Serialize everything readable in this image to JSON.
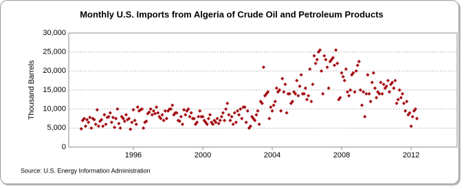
{
  "chart_data": {
    "type": "scatter",
    "title": "Monthly U.S. Imports from Algeria of Crude Oil and Petroleum Products",
    "y_label": "Thousand Barrels",
    "source": "Source: U.S. Energy Information Administration",
    "xlim": [
      1992.28,
      2014.65
    ],
    "xticks": [
      1996,
      2000,
      2004,
      2008,
      2012
    ],
    "ylim": [
      0,
      30000
    ],
    "yticks": [
      {
        "value": 0,
        "label": "0"
      },
      {
        "value": 5000,
        "label": "5,000"
      },
      {
        "value": 10000,
        "label": "10,000"
      },
      {
        "value": 15000,
        "label": "15,000"
      },
      {
        "value": 20000,
        "label": "20,000"
      },
      {
        "value": 25000,
        "label": "25,000"
      },
      {
        "value": 30000,
        "label": "30,000"
      }
    ],
    "grid": true,
    "series": [
      {
        "color": "#a50f15",
        "x": [
          1993,
          1993.083,
          1993.167,
          1993.25,
          1993.333,
          1993.417,
          1993.5,
          1993.583,
          1993.667,
          1993.75,
          1993.833,
          1993.917,
          1994,
          1994.083,
          1994.167,
          1994.25,
          1994.333,
          1994.417,
          1994.5,
          1994.583,
          1994.667,
          1994.75,
          1994.833,
          1994.917,
          1995,
          1995.083,
          1995.167,
          1995.25,
          1995.333,
          1995.417,
          1995.5,
          1995.583,
          1995.667,
          1995.75,
          1995.833,
          1995.917,
          1996,
          1996.083,
          1996.167,
          1996.25,
          1996.333,
          1996.417,
          1996.5,
          1996.583,
          1996.667,
          1996.75,
          1996.833,
          1996.917,
          1997,
          1997.083,
          1997.167,
          1997.25,
          1997.333,
          1997.417,
          1997.5,
          1997.583,
          1997.667,
          1997.75,
          1997.833,
          1997.917,
          1998,
          1998.083,
          1998.167,
          1998.25,
          1998.333,
          1998.417,
          1998.5,
          1998.583,
          1998.667,
          1998.75,
          1998.833,
          1998.917,
          1999,
          1999.083,
          1999.167,
          1999.25,
          1999.333,
          1999.417,
          1999.5,
          1999.583,
          1999.667,
          1999.75,
          1999.833,
          1999.917,
          2000,
          2000.083,
          2000.167,
          2000.25,
          2000.333,
          2000.417,
          2000.5,
          2000.583,
          2000.667,
          2000.75,
          2000.833,
          2000.917,
          2001,
          2001.083,
          2001.167,
          2001.25,
          2001.333,
          2001.417,
          2001.5,
          2001.583,
          2001.667,
          2001.75,
          2001.833,
          2001.917,
          2002,
          2002.083,
          2002.167,
          2002.25,
          2002.333,
          2002.417,
          2002.5,
          2002.583,
          2002.667,
          2002.75,
          2002.833,
          2002.917,
          2003,
          2003.083,
          2003.167,
          2003.25,
          2003.333,
          2003.417,
          2003.5,
          2003.583,
          2003.667,
          2003.75,
          2003.833,
          2003.917,
          2004,
          2004.083,
          2004.167,
          2004.25,
          2004.333,
          2004.417,
          2004.5,
          2004.583,
          2004.667,
          2004.75,
          2004.833,
          2004.917,
          2005,
          2005.083,
          2005.167,
          2005.25,
          2005.333,
          2005.417,
          2005.5,
          2005.583,
          2005.667,
          2005.75,
          2005.833,
          2005.917,
          2006,
          2006.083,
          2006.167,
          2006.25,
          2006.333,
          2006.417,
          2006.5,
          2006.583,
          2006.667,
          2006.75,
          2006.833,
          2006.917,
          2007,
          2007.083,
          2007.167,
          2007.25,
          2007.333,
          2007.417,
          2007.5,
          2007.583,
          2007.667,
          2007.75,
          2007.833,
          2007.917,
          2008,
          2008.083,
          2008.167,
          2008.25,
          2008.333,
          2008.417,
          2008.5,
          2008.583,
          2008.667,
          2008.75,
          2008.833,
          2008.917,
          2009,
          2009.083,
          2009.167,
          2009.25,
          2009.333,
          2009.417,
          2009.5,
          2009.583,
          2009.667,
          2009.75,
          2009.833,
          2009.917,
          2010,
          2010.083,
          2010.167,
          2010.25,
          2010.333,
          2010.417,
          2010.5,
          2010.583,
          2010.667,
          2010.75,
          2010.833,
          2010.917,
          2011,
          2011.083,
          2011.167,
          2011.25,
          2011.333,
          2011.417,
          2011.5,
          2011.583,
          2011.667,
          2011.75,
          2011.833,
          2011.917,
          2012,
          2012.083,
          2012.167,
          2012.25,
          2012.333
        ],
        "values": [
          4800,
          7000,
          7500,
          5500,
          7200,
          6500,
          7800,
          5000,
          7500,
          7200,
          6000,
          9800,
          5500,
          6800,
          7200,
          5500,
          8500,
          6000,
          7800,
          8000,
          9000,
          6500,
          7800,
          5200,
          7500,
          10000,
          6200,
          5000,
          8000,
          7500,
          6800,
          8500,
          7200,
          7500,
          4700,
          6500,
          9800,
          7000,
          6000,
          10500,
          9500,
          9800,
          10000,
          5000,
          6500,
          6800,
          8800,
          9200,
          10000,
          8500,
          9500,
          8800,
          10500,
          9000,
          8000,
          7500,
          8500,
          7000,
          9500,
          7500,
          9500,
          10000,
          10000,
          11000,
          8500,
          9000,
          9000,
          7000,
          6800,
          8000,
          6000,
          9800,
          8500,
          9500,
          10000,
          8000,
          9000,
          7500,
          7500,
          6000,
          6500,
          8000,
          9500,
          8000,
          8000,
          7000,
          6500,
          6000,
          7500,
          8500,
          6500,
          6000,
          7000,
          6500,
          7500,
          6200,
          7000,
          8000,
          9000,
          7000,
          10000,
          11500,
          8500,
          7000,
          8000,
          6000,
          9000,
          6500,
          9500,
          8500,
          10000,
          7500,
          10500,
          10500,
          6500,
          9500,
          5000,
          5500,
          8000,
          7500,
          7000,
          8500,
          9500,
          6000,
          12000,
          11500,
          21000,
          13500,
          14000,
          14500,
          7500,
          10500,
          9500,
          11000,
          12000,
          15500,
          14500,
          15000,
          9500,
          18000,
          14500,
          16500,
          9000,
          14000,
          14000,
          11500,
          12000,
          14500,
          14000,
          17500,
          13500,
          16000,
          19000,
          14000,
          14000,
          15500,
          12500,
          13500,
          20500,
          12000,
          16500,
          24000,
          22000,
          23000,
          25000,
          25500,
          20000,
          14000,
          24000,
          23000,
          21000,
          15500,
          22500,
          23000,
          23500,
          21500,
          25500,
          22000,
          12500,
          13000,
          19500,
          18500,
          17500,
          20500,
          14500,
          13500,
          15000,
          19000,
          19500,
          14500,
          20000,
          21500,
          22500,
          15000,
          11000,
          14500,
          8000,
          14000,
          19000,
          14000,
          12000,
          17000,
          19500,
          15500,
          13000,
          14500,
          14000,
          17000,
          14000,
          16500,
          15500,
          16000,
          17500,
          14500,
          16500,
          17000,
          15500,
          17500,
          11500,
          12500,
          15000,
          13000,
          14000,
          11500,
          9500,
          12000,
          8500,
          9000,
          5500,
          8000,
          9500,
          10000,
          7500
        ]
      }
    ]
  }
}
